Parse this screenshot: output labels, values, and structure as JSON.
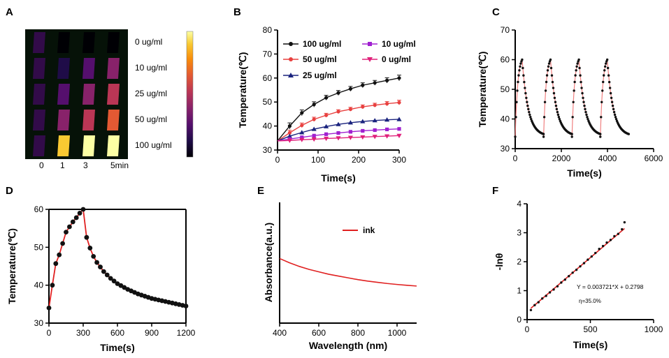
{
  "panel_labels": [
    "A",
    "B",
    "C",
    "D",
    "E",
    "F"
  ],
  "panelA": {
    "rows": [
      "0 ug/ml",
      "10 ug/ml",
      "25 ug/ml",
      "50 ug/ml",
      "100 ug/ml"
    ],
    "cols": [
      "0",
      "1",
      "3",
      "5min"
    ],
    "intensity": [
      [
        0.0,
        0.02,
        0.04,
        0.06
      ],
      [
        0.0,
        0.1,
        0.22,
        0.32
      ],
      [
        0.0,
        0.2,
        0.38,
        0.5
      ],
      [
        0.0,
        0.32,
        0.55,
        0.68
      ],
      [
        0.0,
        0.85,
        0.96,
        1.0
      ]
    ],
    "colormap": [
      "#000004",
      "#1f0c48",
      "#550f6d",
      "#88226a",
      "#ba3655",
      "#e35933",
      "#f98c0a",
      "#f9c932",
      "#fcffa4"
    ]
  },
  "chart_data": [
    {
      "panel": "B",
      "type": "line",
      "title": "",
      "xlabel": "Time(s)",
      "ylabel": "Temperature(℃)",
      "xlim": [
        0,
        300
      ],
      "ylim": [
        30,
        80
      ],
      "xticks": [
        0,
        100,
        200,
        300
      ],
      "yticks": [
        30,
        40,
        50,
        60,
        70,
        80
      ],
      "x": [
        0,
        30,
        60,
        90,
        120,
        150,
        180,
        210,
        240,
        270,
        300
      ],
      "series": [
        {
          "name": "100 ug/ml",
          "color": "#111111",
          "marker": "circle",
          "values": [
            33.8,
            40.0,
            45.5,
            49.0,
            51.8,
            53.8,
            55.5,
            57.0,
            58.0,
            59.0,
            60.0
          ]
        },
        {
          "name": "50 ug/ml",
          "color": "#e8403f",
          "marker": "circle",
          "values": [
            33.8,
            37.2,
            40.3,
            42.8,
            44.5,
            46.0,
            47.0,
            48.0,
            48.7,
            49.3,
            49.8
          ]
        },
        {
          "name": "25 ug/ml",
          "color": "#1a237e",
          "marker": "triangle",
          "values": [
            33.8,
            35.8,
            37.3,
            38.7,
            39.8,
            40.7,
            41.4,
            41.9,
            42.3,
            42.6,
            42.8
          ]
        },
        {
          "name": "10 ug/ml",
          "color": "#a020d0",
          "marker": "square",
          "values": [
            33.8,
            34.6,
            35.3,
            36.0,
            36.6,
            37.1,
            37.6,
            38.0,
            38.3,
            38.6,
            38.8
          ]
        },
        {
          "name": "0 ug/ml",
          "color": "#e0207a",
          "marker": "triangle-down",
          "values": [
            33.8,
            34.0,
            34.3,
            34.5,
            34.8,
            35.0,
            35.2,
            35.4,
            35.6,
            35.8,
            36.0
          ]
        }
      ],
      "error": [
        0,
        1.3,
        1.2,
        1.1,
        1.0,
        1.0,
        1.0,
        1.0,
        1.0,
        1.1,
        1.2
      ],
      "legend": "top-left"
    },
    {
      "panel": "C",
      "type": "line",
      "xlabel": "Time(s)",
      "ylabel": "Temperature(℃)",
      "xlim": [
        0,
        6000
      ],
      "ylim": [
        30,
        70
      ],
      "xticks": [
        0,
        2000,
        4000,
        6000
      ],
      "yticks": [
        30,
        40,
        50,
        60,
        70
      ],
      "cycle_period": 1230,
      "heating_s": 300,
      "cycles": 4,
      "start_temp": 34.0,
      "peak_temp": 60.0,
      "end_temp": 34.2,
      "color": "#f08080",
      "marker_color": "#111111"
    },
    {
      "panel": "D",
      "type": "line",
      "xlabel": "Time(s)",
      "ylabel": "Temperature(℃)",
      "xlim": [
        0,
        1200
      ],
      "ylim": [
        30,
        60
      ],
      "xticks": [
        0,
        300,
        600,
        900,
        1200
      ],
      "yticks": [
        30,
        40,
        50,
        60
      ],
      "x": [
        0,
        30,
        60,
        90,
        120,
        150,
        180,
        210,
        240,
        270,
        300,
        330,
        360,
        390,
        420,
        450,
        480,
        510,
        540,
        570,
        600,
        630,
        660,
        690,
        720,
        750,
        780,
        810,
        840,
        870,
        900,
        930,
        960,
        990,
        1020,
        1050,
        1080,
        1110,
        1140,
        1170,
        1200
      ],
      "values": [
        34.0,
        40.0,
        45.7,
        48.0,
        51.0,
        54.0,
        55.4,
        56.7,
        57.8,
        59.0,
        60.0,
        52.6,
        49.8,
        47.6,
        46.0,
        44.8,
        43.6,
        42.7,
        41.8,
        41.1,
        40.4,
        39.9,
        39.4,
        38.9,
        38.5,
        38.1,
        37.7,
        37.4,
        37.1,
        36.8,
        36.5,
        36.3,
        36.1,
        35.9,
        35.7,
        35.5,
        35.3,
        35.1,
        34.9,
        34.7,
        34.5
      ],
      "color": "#e02020",
      "marker_color": "#111111"
    },
    {
      "panel": "E",
      "type": "line",
      "xlabel": "Wavelength (nm)",
      "ylabel": "Absorbance(a.u.)",
      "xlim": [
        400,
        1100
      ],
      "xticks": [
        400,
        600,
        800,
        1000
      ],
      "show_yticks": false,
      "x": [
        400,
        450,
        500,
        550,
        600,
        650,
        700,
        750,
        800,
        850,
        900,
        950,
        1000,
        1050,
        1100
      ],
      "values": [
        0.535,
        0.5,
        0.47,
        0.445,
        0.425,
        0.405,
        0.39,
        0.375,
        0.36,
        0.348,
        0.338,
        0.328,
        0.32,
        0.313,
        0.307
      ],
      "ylim": [
        0,
        1
      ],
      "series_name": "ink",
      "color": "#e02020",
      "legend": "top-center"
    },
    {
      "panel": "F",
      "type": "scatter",
      "xlabel": "Time(s)",
      "ylabel": "-lnθ",
      "xlim": [
        0,
        1000
      ],
      "ylim": [
        0,
        4
      ],
      "xticks": [
        0,
        500,
        1000
      ],
      "yticks": [
        0,
        1,
        2,
        3,
        4
      ],
      "x": [
        30,
        60,
        90,
        120,
        150,
        180,
        210,
        240,
        270,
        300,
        330,
        360,
        390,
        420,
        450,
        480,
        510,
        540,
        570,
        600,
        630,
        660,
        690,
        720,
        750,
        770
      ],
      "values": [
        0.33,
        0.5,
        0.6,
        0.73,
        0.82,
        0.94,
        1.04,
        1.15,
        1.28,
        1.38,
        1.5,
        1.62,
        1.72,
        1.84,
        1.95,
        2.07,
        2.18,
        2.3,
        2.44,
        2.54,
        2.66,
        2.75,
        2.88,
        2.96,
        3.12,
        3.36
      ],
      "fit": {
        "slope": 0.003721,
        "intercept": 0.2798,
        "x_range": [
          30,
          770
        ]
      },
      "equation": "Y = 0.003721*X + 0.2798",
      "efficiency": "η=35.0%",
      "color": "#e02020",
      "marker_color": "#111111"
    }
  ]
}
